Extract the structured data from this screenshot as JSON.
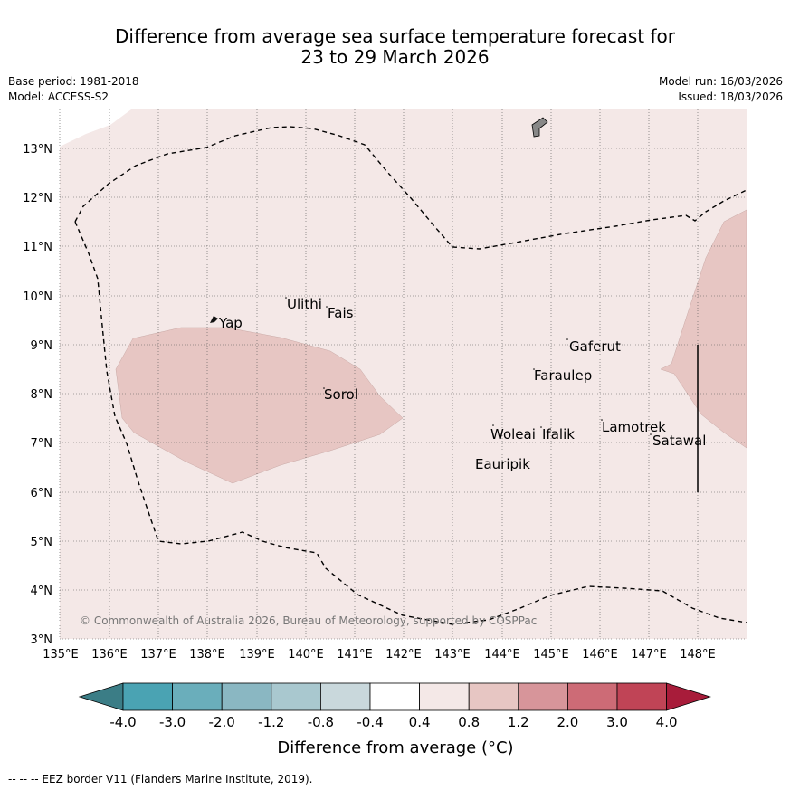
{
  "title": {
    "line1": "Difference from average sea surface temperature forecast for",
    "line2": "23 to 29 March 2026"
  },
  "meta": {
    "base_period": "Base period: 1981-2018",
    "model": "Model: ACCESS-S2",
    "model_run": "Model run: 16/03/2026",
    "issued": "Issued: 18/03/2026"
  },
  "map": {
    "lat_labels": [
      "13°N",
      "12°N",
      "11°N",
      "10°N",
      "9°N",
      "8°N",
      "7°N",
      "6°N",
      "5°N",
      "4°N",
      "3°N"
    ],
    "lon_labels": [
      "135°E",
      "136°E",
      "137°E",
      "138°E",
      "139°E",
      "140°E",
      "141°E",
      "142°E",
      "143°E",
      "144°E",
      "145°E",
      "146°E",
      "147°E",
      "148°E"
    ],
    "places": [
      "Yap",
      "Ulithi",
      "Fais",
      "Sorol",
      "Gaferut",
      "Faraulep",
      "Woleai",
      "Ifalik",
      "Lamotrek",
      "Satawal",
      "Eauripik"
    ],
    "copyright": "© Commonwealth of Australia 2026, Bureau of Meteorology, supported by COSPPac",
    "colors": {
      "background_anomaly": "#f4e8e7",
      "warm_patch": "#e7c6c3"
    }
  },
  "colorbar": {
    "labels": [
      "-4.0",
      "-3.0",
      "-2.0",
      "-1.2",
      "-0.8",
      "-0.4",
      "0.4",
      "0.8",
      "1.2",
      "2.0",
      "3.0",
      "4.0"
    ],
    "colors": [
      "#3b7d86",
      "#4aa3b3",
      "#6aaebb",
      "#8ab7c2",
      "#a9c8cf",
      "#c9d8dc",
      "#ffffff",
      "#f4e8e7",
      "#e7c6c3",
      "#d7959a",
      "#cd6b76",
      "#c04456",
      "#a81c3a"
    ],
    "title": "Difference from average (°C)"
  },
  "footer": "--  --  -- EEZ border V11 (Flanders Marine Institute, 2019)."
}
